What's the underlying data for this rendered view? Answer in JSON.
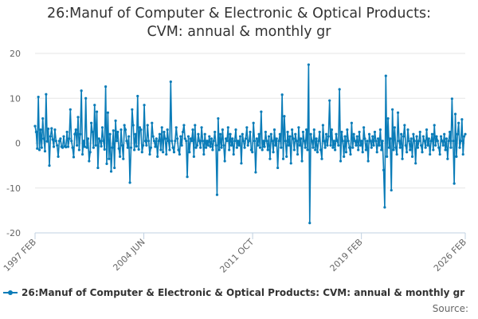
{
  "title_line1": "26:Manuf of Computer & Electronic & Optical Products:",
  "title_line2": "CVM: annual & monthly gr",
  "credit": "Source:",
  "colors": {
    "series": "#0a7cb8",
    "grid": "#e6e6e6",
    "axis": "#c0d0e0",
    "text": "#666666"
  },
  "chart_data": {
    "type": "line",
    "title": "26:Manuf of Computer & Electronic & Optical Products: CVM: annual & monthly gr",
    "xlabel": "",
    "ylabel": "",
    "x_start": "1997-02",
    "x_end": "2026-02",
    "x_ticks": [
      "1997 FEB",
      "2004 JUN",
      "2011 OCT",
      "2019 FEB",
      "2026 FEB"
    ],
    "ylim": [
      -20,
      20
    ],
    "y_ticks": [
      20,
      10,
      0,
      -10,
      -20
    ],
    "grid": true,
    "legend_position": "bottom-left",
    "series": [
      {
        "name": "26:Manuf of Computer & Electronic & Optical Products: CVM: annual & monthly gr",
        "values": [
          3.8,
          2.5,
          -1.2,
          10.3,
          -1.5,
          3.0,
          -1.0,
          5.5,
          1.0,
          -1.8,
          10.9,
          0.4,
          3.2,
          -5.0,
          1.5,
          3.3,
          0.8,
          -0.8,
          3.0,
          0.5,
          -0.5,
          -3.0,
          0.5,
          1.0,
          -0.8,
          -1.0,
          1.5,
          -0.7,
          -0.9,
          2.5,
          -0.8,
          1.0,
          7.5,
          0.5,
          -1.0,
          -3.1,
          2.0,
          3.0,
          -0.5,
          5.8,
          -1.5,
          2.0,
          11.7,
          -2.5,
          0.5,
          -0.8,
          10.0,
          -1.0,
          1.0,
          -4.0,
          -2.0,
          4.5,
          2.5,
          -1.0,
          8.5,
          -0.5,
          7.0,
          -5.5,
          1.0,
          0.5,
          -0.7,
          3.5,
          0.5,
          -1.4,
          12.6,
          -4.6,
          6.8,
          -3.5,
          2.0,
          -6.3,
          -1.0,
          2.8,
          -5.5,
          5.0,
          0.5,
          2.5,
          -1.2,
          -3.0,
          3.0,
          -0.5,
          -3.5,
          4.0,
          3.0,
          0.5,
          -1.0,
          1.5,
          -8.8,
          -1.0,
          7.5,
          4.0,
          -1.5,
          2.0,
          -0.7,
          10.5,
          -1.4,
          3.5,
          3.0,
          -2.0,
          -0.5,
          8.5,
          0.5,
          -0.5,
          4.0,
          0.5,
          -2.5,
          -1.0,
          4.5,
          1.5,
          0.5,
          -0.8,
          1.0,
          -3.0,
          0.5,
          2.0,
          -1.5,
          3.5,
          -2.0,
          2.5,
          1.0,
          -2.5,
          3.0,
          0.5,
          -1.5,
          13.7,
          0.5,
          -1.0,
          -2.0,
          0.5,
          3.5,
          1.0,
          -1.5,
          -2.5,
          1.5,
          -0.5,
          2.5,
          4.0,
          1.0,
          0.5,
          -7.5,
          1.5,
          -2.0,
          1.0,
          0.5,
          3.0,
          -3.0,
          4.0,
          -1.0,
          -0.5,
          2.0,
          0.5,
          -1.0,
          3.5,
          0.5,
          -2.5,
          2.0,
          -1.0,
          0.5,
          -0.5,
          1.5,
          -0.8,
          1.0,
          -1.5,
          0.5,
          2.5,
          -0.5,
          -11.5,
          5.5,
          -1.5,
          2.0,
          -1.0,
          3.0,
          -0.5,
          -4.0,
          1.0,
          0.5,
          3.5,
          -1.5,
          2.0,
          -0.5,
          1.0,
          -2.5,
          0.5,
          3.0,
          -1.0,
          0.5,
          -0.5,
          1.5,
          -4.5,
          2.0,
          0.5,
          -1.0,
          1.0,
          3.5,
          -0.5,
          0.5,
          2.5,
          -1.5,
          -2.0,
          4.5,
          0.5,
          -6.5,
          1.0,
          -0.5,
          2.0,
          -1.0,
          7.0,
          -1.5,
          0.5,
          -0.8,
          2.5,
          0.5,
          -1.5,
          1.5,
          -3.5,
          2.0,
          0.5,
          -2.0,
          3.0,
          -0.5,
          1.0,
          -5.5,
          0.5,
          2.0,
          -1.0,
          10.8,
          -3.5,
          6.0,
          0.5,
          -3.0,
          2.5,
          -0.5,
          1.5,
          -4.5,
          3.0,
          1.0,
          -1.5,
          2.0,
          0.5,
          -2.5,
          3.5,
          -0.5,
          1.0,
          -4.0,
          2.5,
          0.5,
          -1.0,
          3.0,
          -1.5,
          17.5,
          -17.8,
          2.0,
          0.5,
          -1.0,
          3.0,
          -1.5,
          1.0,
          -2.0,
          0.5,
          2.5,
          -1.5,
          -3.5,
          4.0,
          0.5,
          -1.0,
          2.0,
          -0.5,
          1.5,
          9.5,
          -0.5,
          3.0,
          -1.0,
          0.5,
          -1.5,
          2.0,
          0.5,
          -0.5,
          12.0,
          -4.0,
          2.5,
          0.5,
          -3.0,
          1.5,
          -2.0,
          3.0,
          0.5,
          -1.0,
          -2.5,
          4.5,
          -1.0,
          2.0,
          0.5,
          -0.5,
          1.5,
          -1.5,
          2.5,
          -0.5,
          0.5,
          -2.0,
          3.5,
          1.0,
          -1.5,
          0.5,
          -4.0,
          2.0,
          0.5,
          -1.0,
          1.5,
          -0.5,
          2.5,
          0.5,
          -2.0,
          1.0,
          -0.5,
          3.0,
          -1.5,
          0.5,
          -6.0,
          -14.3,
          15.0,
          -3.0,
          5.5,
          -1.0,
          1.0,
          -10.5,
          7.5,
          -1.5,
          3.5,
          -1.0,
          -2.5,
          6.8,
          0.5,
          -1.0,
          2.0,
          -3.5,
          1.5,
          4.0,
          -0.5,
          -2.0,
          3.0,
          0.5,
          -1.5,
          1.0,
          -3.0,
          2.0,
          0.5,
          -4.5,
          1.5,
          -1.0,
          0.5,
          2.5,
          -0.5,
          -2.0,
          1.5,
          0.5,
          -1.0,
          3.0,
          -0.5,
          1.0,
          -2.5,
          0.5,
          2.0,
          -1.5,
          4.0,
          -0.5,
          1.5,
          0.5,
          -1.0,
          -2.5,
          1.5,
          0.5,
          -0.5,
          2.0,
          -1.5,
          1.0,
          -3.5,
          0.5,
          2.5,
          -1.0,
          9.9,
          0.5,
          -9.0,
          6.5,
          -3.0,
          2.0,
          4.5,
          -1.0,
          0.5,
          5.3,
          -2.5,
          1.5,
          2.0
        ]
      }
    ]
  }
}
